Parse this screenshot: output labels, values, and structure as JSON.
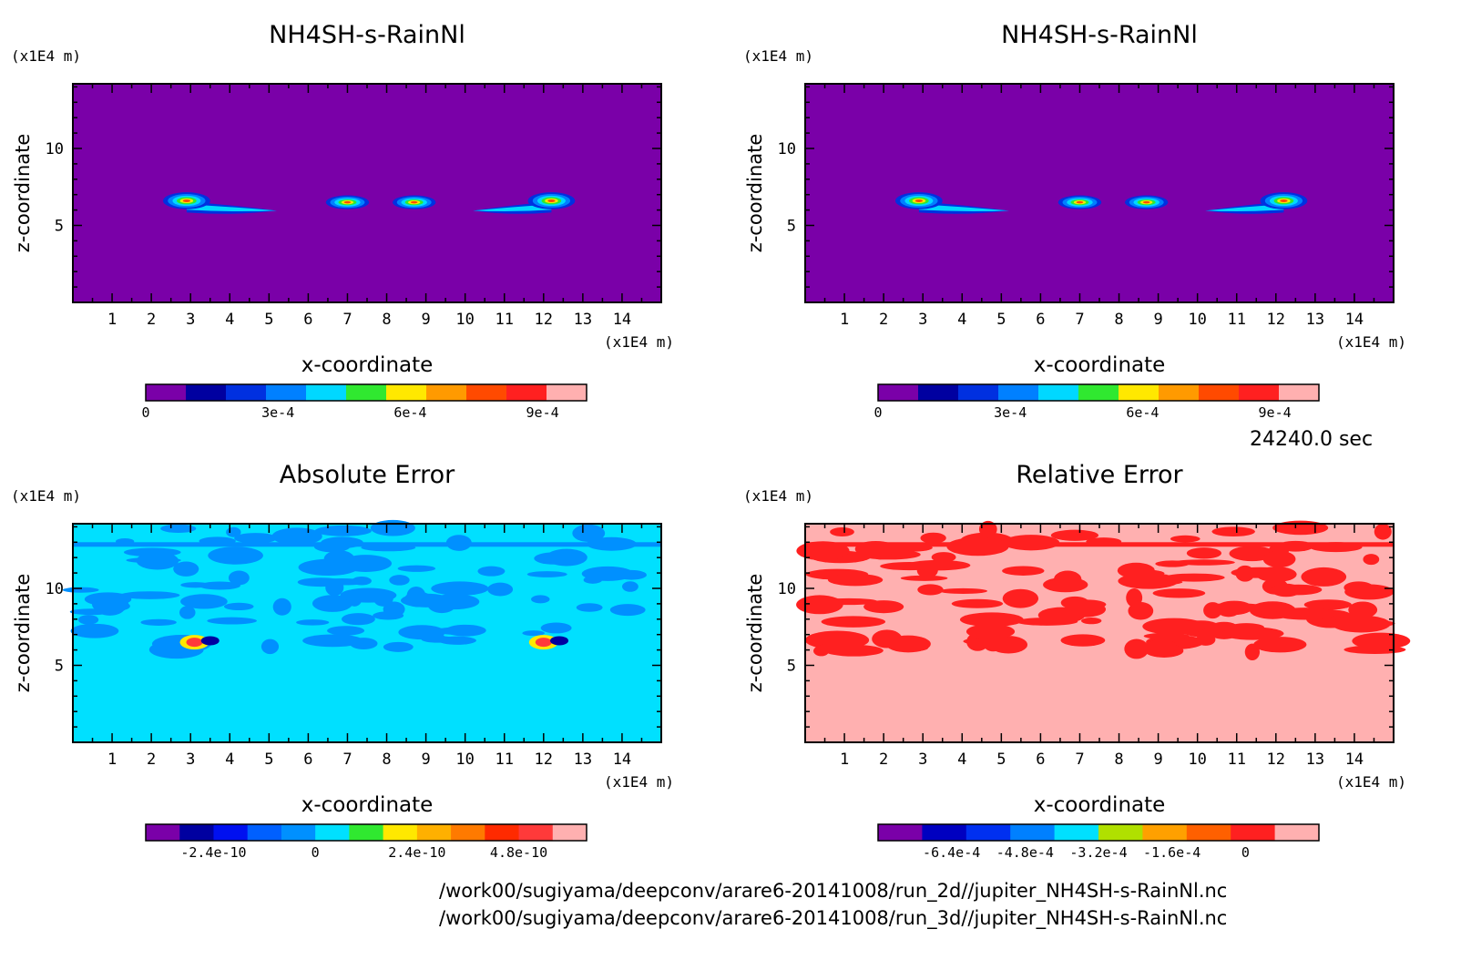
{
  "time_label": "24240.0 sec",
  "file_paths": [
    "/work00/sugiyama/deepconv/arare6-20141008/run_2d//jupiter_NH4SH-s-RainNl.nc",
    "/work00/sugiyama/deepconv/arare6-20141008/run_3d//jupiter_NH4SH-s-RainNl.nc"
  ],
  "chart_data": [
    {
      "type": "heatmap",
      "title": "NH4SH-s-RainNl",
      "xlabel": "x-coordinate",
      "ylabel": "z-coordinate",
      "x_unit": "(x1E4 m)",
      "y_unit": "(x1E4 m)",
      "xlim": [
        0,
        15
      ],
      "ylim": [
        0,
        14.2
      ],
      "x_ticks": [
        "1",
        "2",
        "3",
        "4",
        "5",
        "6",
        "7",
        "8",
        "9",
        "10",
        "11",
        "12",
        "13",
        "14"
      ],
      "y_ticks": [
        "5",
        "10"
      ],
      "background_color": "#7a00a8",
      "colorbar": {
        "colors": [
          "#7a00a8",
          "#0000a0",
          "#0030e0",
          "#0080ff",
          "#00d8ff",
          "#30e830",
          "#ffe800",
          "#ff9a00",
          "#ff4a00",
          "#ff2020",
          "#ffb0b0"
        ],
        "tick_labels": [
          "0",
          "3e-4",
          "6e-4",
          "9e-4"
        ],
        "tick_values": [
          0,
          0.0003,
          0.0006,
          0.0009
        ],
        "range": [
          0,
          0.001
        ]
      }
    },
    {
      "type": "heatmap",
      "title": "NH4SH-s-RainNl",
      "xlabel": "x-coordinate",
      "ylabel": "z-coordinate",
      "x_unit": "(x1E4 m)",
      "y_unit": "(x1E4 m)",
      "xlim": [
        0,
        15
      ],
      "ylim": [
        0,
        14.2
      ],
      "x_ticks": [
        "1",
        "2",
        "3",
        "4",
        "5",
        "6",
        "7",
        "8",
        "9",
        "10",
        "11",
        "12",
        "13",
        "14"
      ],
      "y_ticks": [
        "5",
        "10"
      ],
      "background_color": "#7a00a8",
      "colorbar": {
        "colors": [
          "#7a00a8",
          "#0000a0",
          "#0030e0",
          "#0080ff",
          "#00d8ff",
          "#30e830",
          "#ffe800",
          "#ff9a00",
          "#ff4a00",
          "#ff2020",
          "#ffb0b0"
        ],
        "tick_labels": [
          "0",
          "3e-4",
          "6e-4",
          "9e-4"
        ],
        "tick_values": [
          0,
          0.0003,
          0.0006,
          0.0009
        ],
        "range": [
          0,
          0.001
        ]
      }
    },
    {
      "type": "heatmap",
      "title": "Absolute Error",
      "xlabel": "x-coordinate",
      "ylabel": "z-coordinate",
      "x_unit": "(x1E4 m)",
      "y_unit": "(x1E4 m)",
      "xlim": [
        0,
        15
      ],
      "ylim": [
        0,
        14.2
      ],
      "x_ticks": [
        "1",
        "2",
        "3",
        "4",
        "5",
        "6",
        "7",
        "8",
        "9",
        "10",
        "11",
        "12",
        "13",
        "14"
      ],
      "y_ticks": [
        "5",
        "10"
      ],
      "background_color": "#00e0ff",
      "colorbar": {
        "colors": [
          "#7a00a8",
          "#0000a0",
          "#0010f0",
          "#0060ff",
          "#0090ff",
          "#00e0ff",
          "#30e830",
          "#ffe800",
          "#ffb000",
          "#ff7a00",
          "#ff2a00",
          "#ff3a3a",
          "#ffb0b0"
        ],
        "tick_labels": [
          "-2.4e-10",
          "0",
          "2.4e-10",
          "4.8e-10"
        ],
        "tick_values": [
          -2.4e-10,
          0,
          2.4e-10,
          4.8e-10
        ],
        "range": [
          -4e-10,
          6.4e-10
        ]
      }
    },
    {
      "type": "heatmap",
      "title": "Relative Error",
      "xlabel": "x-coordinate",
      "ylabel": "z-coordinate",
      "x_unit": "(x1E4 m)",
      "y_unit": "(x1E4 m)",
      "xlim": [
        0,
        15
      ],
      "ylim": [
        0,
        14.2
      ],
      "x_ticks": [
        "1",
        "2",
        "3",
        "4",
        "5",
        "6",
        "7",
        "8",
        "9",
        "10",
        "11",
        "12",
        "13",
        "14"
      ],
      "y_ticks": [
        "5",
        "10"
      ],
      "background_color": "#ffb0b0",
      "colorbar": {
        "colors": [
          "#7a00a8",
          "#0000c0",
          "#0030f0",
          "#0080ff",
          "#00e0ff",
          "#b0e000",
          "#ffa000",
          "#ff6000",
          "#ff2020",
          "#ffb0b0"
        ],
        "tick_labels": [
          "-6.4e-4",
          "-4.8e-4",
          "-3.2e-4",
          "-1.6e-4",
          "0"
        ],
        "tick_values": [
          -0.00064,
          -0.00048,
          -0.00032,
          -0.00016,
          0
        ],
        "range": [
          -0.0008,
          0.00016
        ]
      }
    }
  ]
}
